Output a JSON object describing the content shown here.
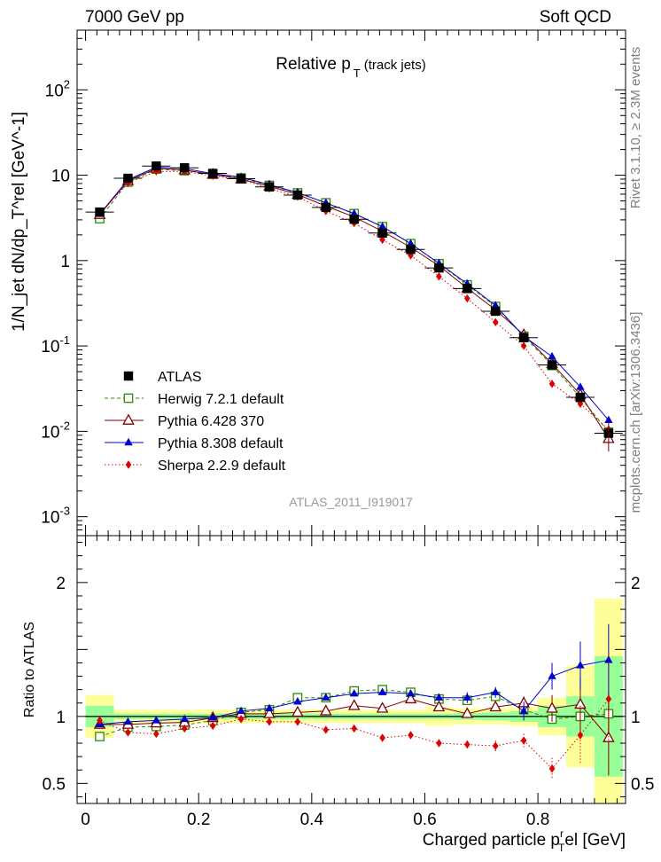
{
  "header": {
    "left": "7000 GeV pp",
    "right": "Soft QCD"
  },
  "side_labels": {
    "rivet": "Rivet 3.1.10, ≥ 2.3M events",
    "mcplots": "mcplots.cern.ch [arXiv:1306.3436]"
  },
  "chart_data": [
    {
      "type": "scatter",
      "panel": "main",
      "title": "Relative p_T (track jets)",
      "title_main": "Relative p",
      "title_sub": "T",
      "title_tail": "(track jets)",
      "ylabel": "1/N_jet dN/dp_T^rel [GeV^-1]",
      "watermark": "ATLAS_2011_I919017",
      "yscale": "log",
      "xlim": [
        -0.015,
        0.955
      ],
      "ylim": [
        0.0006,
        500
      ],
      "y_ticks": [
        {
          "value": 0.001,
          "base": "10",
          "exp": "-3"
        },
        {
          "value": 0.01,
          "base": "10",
          "exp": "-2"
        },
        {
          "value": 0.1,
          "base": "10",
          "exp": "-1"
        },
        {
          "value": 1,
          "base": "1",
          "exp": ""
        },
        {
          "value": 10,
          "base": "10",
          "exp": ""
        },
        {
          "value": 100,
          "base": "10",
          "exp": "2"
        }
      ],
      "x": [
        0.025,
        0.075,
        0.125,
        0.175,
        0.225,
        0.275,
        0.325,
        0.375,
        0.425,
        0.475,
        0.525,
        0.575,
        0.625,
        0.675,
        0.725,
        0.775,
        0.825,
        0.875,
        0.925
      ],
      "series": [
        {
          "name": "ATLAS",
          "color": "#000000",
          "marker": "filled-square",
          "line": "none",
          "values": [
            3.7,
            9.2,
            12.8,
            12.2,
            10.5,
            9.1,
            7.3,
            5.85,
            4.2,
            3.05,
            2.1,
            1.35,
            0.82,
            0.47,
            0.255,
            0.125,
            0.06,
            0.025,
            0.0095
          ]
        },
        {
          "name": "Herwig 7.2.1 default",
          "color": "#2e8b00",
          "marker": "open-square",
          "line": "dashed",
          "values": [
            3.1,
            8.3,
            11.8,
            11.3,
            10.3,
            9.3,
            7.6,
            6.2,
            4.75,
            3.55,
            2.5,
            1.58,
            0.92,
            0.52,
            0.29,
            0.13,
            0.059,
            0.025,
            0.0098
          ]
        },
        {
          "name": "Pythia 6.428 370",
          "color": "#7f0000",
          "marker": "open-triangle",
          "line": "solid",
          "values": [
            3.45,
            8.6,
            12.0,
            11.5,
            10.2,
            9.0,
            7.4,
            5.95,
            4.35,
            3.25,
            2.2,
            1.43,
            0.87,
            0.475,
            0.265,
            0.135,
            0.062,
            0.027,
            0.0082
          ]
        },
        {
          "name": "Pythia 8.308 default",
          "color": "#0000cc",
          "marker": "filled-triangle",
          "line": "solid",
          "values": [
            3.5,
            8.85,
            12.4,
            12.0,
            10.4,
            9.5,
            7.75,
            6.25,
            4.75,
            3.55,
            2.5,
            1.58,
            0.93,
            0.535,
            0.298,
            0.13,
            0.075,
            0.033,
            0.0135
          ]
        },
        {
          "name": "Sherpa 2.2.9 default",
          "color": "#e00000",
          "marker": "filled-diamond",
          "line": "dotted",
          "values": [
            3.6,
            8.1,
            11.1,
            11.1,
            9.8,
            8.9,
            7.0,
            5.6,
            3.8,
            2.75,
            1.75,
            1.15,
            0.65,
            0.36,
            0.19,
            0.1,
            0.036,
            0.021,
            0.0105
          ]
        }
      ],
      "legend_position": "left-middle"
    },
    {
      "type": "scatter",
      "panel": "ratio",
      "ylabel": "Ratio to ATLAS",
      "xlabel": "Charged particle p_T^rel [GeV]",
      "xlabel_main": "Charged particle p",
      "xlabel_sub": "T",
      "xlabel_sup": "r",
      "xlabel_tail": "el [GeV]",
      "xlim": [
        -0.015,
        0.955
      ],
      "ylim": [
        0.35,
        2.35
      ],
      "x_ticks": [
        {
          "value": 0,
          "label": "0"
        },
        {
          "value": 0.2,
          "label": "0.2"
        },
        {
          "value": 0.4,
          "label": "0.4"
        },
        {
          "value": 0.6,
          "label": "0.6"
        },
        {
          "value": 0.8,
          "label": "0.8"
        }
      ],
      "y_ticks": [
        {
          "value": 0.5,
          "label": "0.5"
        },
        {
          "value": 1,
          "label": "1"
        },
        {
          "value": 2,
          "label": "2"
        }
      ],
      "bands": {
        "bin_edges": [
          0,
          0.05,
          0.1,
          0.15,
          0.2,
          0.25,
          0.3,
          0.35,
          0.4,
          0.45,
          0.5,
          0.55,
          0.6,
          0.65,
          0.7,
          0.75,
          0.8,
          0.85,
          0.9,
          0.95
        ],
        "stat_half_width": [
          0.08,
          0.02,
          0.02,
          0.02,
          0.02,
          0.02,
          0.02,
          0.02,
          0.02,
          0.02,
          0.02,
          0.02,
          0.02,
          0.025,
          0.03,
          0.04,
          0.08,
          0.15,
          0.45
        ],
        "total_half_width": [
          0.16,
          0.05,
          0.05,
          0.05,
          0.05,
          0.05,
          0.05,
          0.05,
          0.05,
          0.05,
          0.05,
          0.05,
          0.07,
          0.06,
          0.06,
          0.07,
          0.14,
          0.38,
          0.88
        ],
        "stat_color": "#99ff99",
        "total_color": "#ffff99"
      },
      "series": [
        {
          "name": "Herwig 7.2.1 default",
          "color": "#2e8b00",
          "marker": "open-square",
          "line": "dashed",
          "values": [
            0.85,
            0.92,
            0.925,
            0.935,
            0.97,
            1.03,
            1.05,
            1.14,
            1.14,
            1.19,
            1.2,
            1.18,
            1.13,
            1.12,
            1.15,
            1.05,
            0.98,
            1.0,
            1.02
          ],
          "errors": [
            0,
            0,
            0,
            0,
            0,
            0,
            0,
            0,
            0,
            0,
            0,
            0,
            0,
            0,
            0,
            0,
            0,
            0.1,
            0.15
          ]
        },
        {
          "name": "Pythia 6.428 370",
          "color": "#7f0000",
          "marker": "open-triangle",
          "line": "solid",
          "values": [
            0.94,
            0.94,
            0.95,
            0.955,
            0.99,
            1.02,
            1.02,
            1.03,
            1.04,
            1.08,
            1.06,
            1.13,
            1.07,
            1.02,
            1.07,
            1.1,
            1.06,
            1.09,
            0.84
          ],
          "errors": [
            0,
            0,
            0,
            0,
            0,
            0,
            0,
            0,
            0,
            0,
            0,
            0,
            0,
            0,
            0,
            0.05,
            0.1,
            0.2,
            0.28
          ]
        },
        {
          "name": "Pythia 8.308 default",
          "color": "#0000cc",
          "marker": "filled-triangle",
          "line": "solid",
          "values": [
            0.94,
            0.96,
            0.97,
            0.98,
            0.99,
            1.04,
            1.06,
            1.11,
            1.14,
            1.17,
            1.18,
            1.17,
            1.14,
            1.14,
            1.18,
            1.04,
            1.3,
            1.38,
            1.42
          ],
          "errors": [
            0,
            0,
            0,
            0,
            0,
            0,
            0,
            0,
            0,
            0,
            0,
            0,
            0.03,
            0.04,
            0.04,
            0.07,
            0.1,
            0.18,
            0.27
          ]
        },
        {
          "name": "Sherpa 2.2.9 default",
          "color": "#e00000",
          "marker": "filled-diamond",
          "line": "dotted",
          "values": [
            0.97,
            0.88,
            0.87,
            0.91,
            0.93,
            0.98,
            0.96,
            0.96,
            0.9,
            0.91,
            0.84,
            0.86,
            0.8,
            0.79,
            0.78,
            0.82,
            0.61,
            0.86,
            1.13
          ],
          "errors": [
            0,
            0,
            0,
            0,
            0,
            0,
            0,
            0,
            0,
            0,
            0,
            0,
            0.03,
            0.03,
            0.04,
            0.05,
            0.08,
            0.22,
            0.35
          ]
        }
      ]
    }
  ]
}
